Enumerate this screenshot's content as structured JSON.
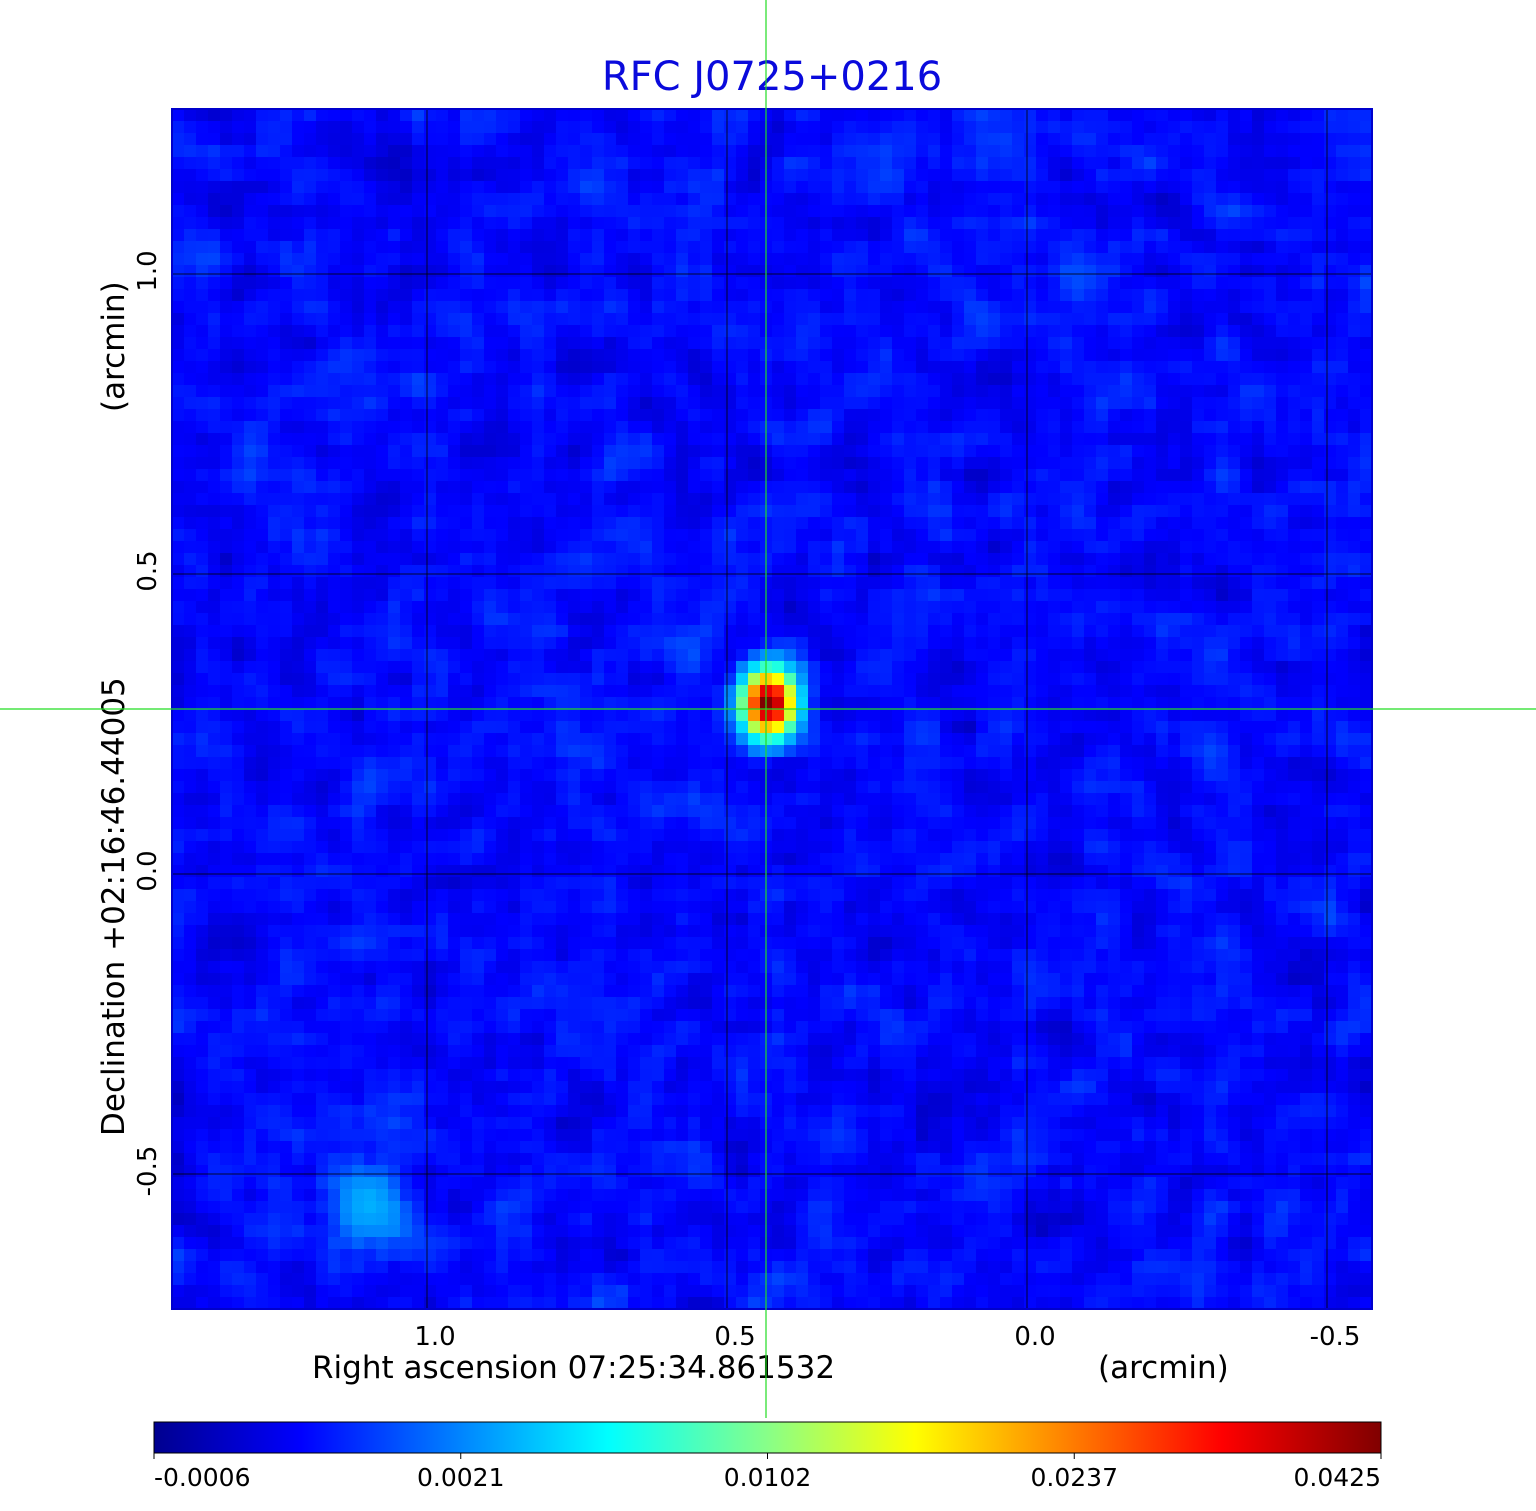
{
  "chart_data": {
    "type": "heatmap",
    "title": "RFC J0725+0216",
    "colormap": "jet",
    "background_level": 0.0008,
    "x_axis": {
      "label": "Right ascension  07:25:34.861532",
      "unit_label": "(arcmin)",
      "ticks": [
        {
          "value": 1.0,
          "label": "1.0"
        },
        {
          "value": 0.5,
          "label": "0.5"
        },
        {
          "value": 0.0,
          "label": "0.0"
        },
        {
          "value": -0.5,
          "label": "-0.5"
        }
      ],
      "range": [
        1.425,
        -0.575
      ],
      "direction": "decreasing"
    },
    "y_axis": {
      "label": "Declination  +02:16:46.44005",
      "unit_label": "(arcmin)",
      "ticks": [
        {
          "value": 1.0,
          "label": "1.0"
        },
        {
          "value": 0.5,
          "label": "0.5"
        },
        {
          "value": 0.0,
          "label": "0.0"
        },
        {
          "value": -0.5,
          "label": "-0.5"
        }
      ],
      "range": [
        -0.725,
        1.275
      ]
    },
    "grid": true,
    "crosshair": {
      "x": 0.435,
      "y": 0.275,
      "color": "#22dd22"
    },
    "source": {
      "x": 0.43,
      "y": 0.285,
      "peak": 0.0425,
      "fwhm_x": 0.06,
      "fwhm_y": 0.075
    },
    "faint_source": {
      "x": 1.1,
      "y": -0.555,
      "peak": 0.0028
    },
    "colorbar": {
      "ticks": [
        "-0.0006",
        "0.0021",
        "0.0102",
        "0.0237",
        "0.0425"
      ],
      "min": -0.0006,
      "max": 0.0425
    }
  }
}
